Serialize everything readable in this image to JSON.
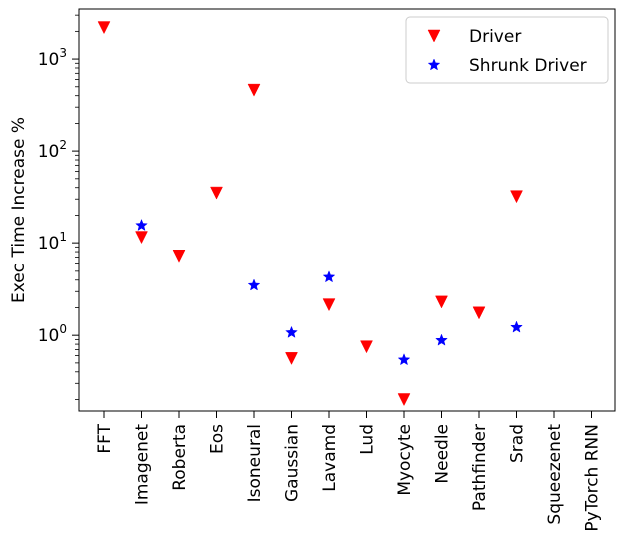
{
  "chart_data": {
    "type": "scatter",
    "categories": [
      "FFT",
      "Imagenet",
      "Roberta",
      "Eos",
      "Isoneural",
      "Gaussian",
      "Lavamd",
      "Lud",
      "Myocyte",
      "Needle",
      "Pathfinder",
      "Srad",
      "Squeezenet",
      "PyTorch RNN"
    ],
    "ylabel": "Exec Time Increase %",
    "xlabel": "",
    "yscale": "log",
    "ylim": [
      0.15,
      3500
    ],
    "y_ticks": [
      {
        "value": 1,
        "base": "10",
        "exp": "0"
      },
      {
        "value": 10,
        "base": "10",
        "exp": "1"
      },
      {
        "value": 100,
        "base": "10",
        "exp": "2"
      },
      {
        "value": 1000,
        "base": "10",
        "exp": "3"
      }
    ],
    "grid": false,
    "legend_position": "top-right",
    "series": [
      {
        "name": "Driver",
        "marker": "triangle-down",
        "color": "#ff0000",
        "values": [
          2200,
          11.5,
          7.2,
          35,
          460,
          0.56,
          2.15,
          0.75,
          0.2,
          2.3,
          1.75,
          32,
          null,
          null
        ]
      },
      {
        "name": "Shrunk Driver",
        "marker": "star",
        "color": "#0000ff",
        "values": [
          null,
          15.5,
          null,
          null,
          3.5,
          1.07,
          4.3,
          null,
          0.54,
          0.88,
          null,
          1.22,
          null,
          null
        ]
      }
    ]
  }
}
